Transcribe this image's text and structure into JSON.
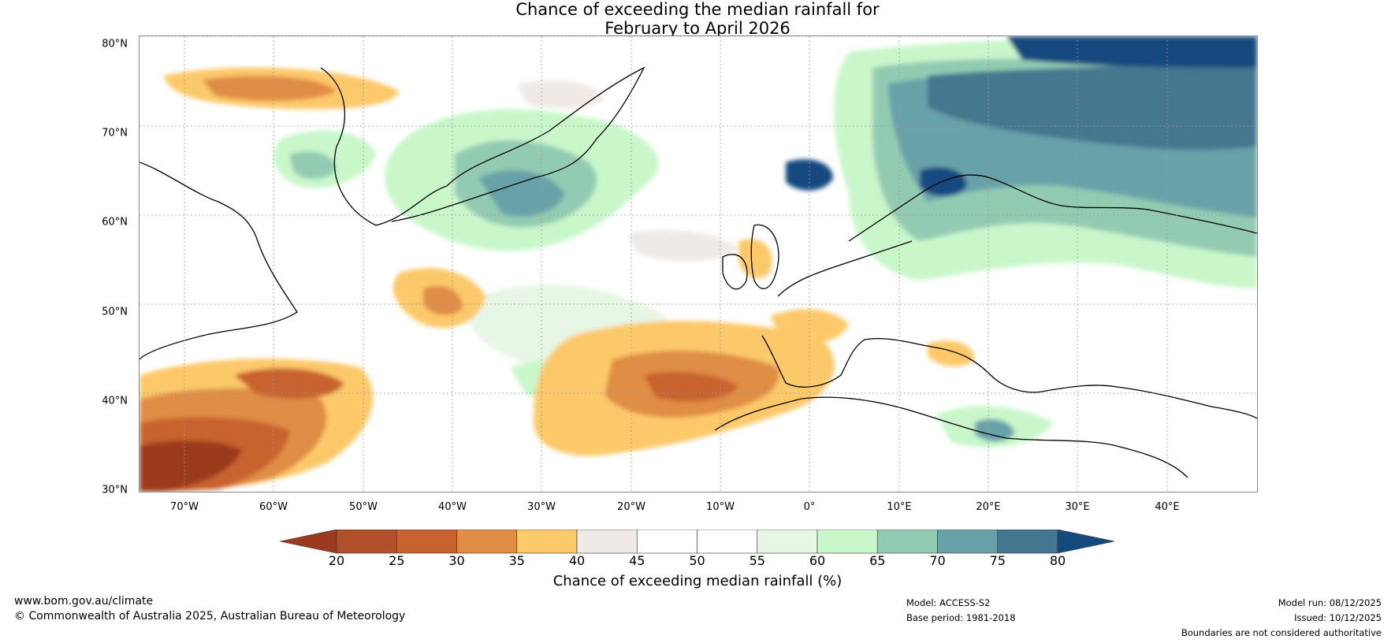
{
  "title": {
    "line1": "Chance of exceeding the median rainfall for",
    "line2": "February to April 2026"
  },
  "map": {
    "lat_labels": [
      "80°N",
      "70°N",
      "60°N",
      "50°N",
      "40°N",
      "30°N"
    ],
    "lon_labels": [
      "70°W",
      "60°W",
      "50°W",
      "40°W",
      "30°W",
      "20°W",
      "10°W",
      "0°",
      "10°E",
      "20°E",
      "30°E",
      "40°E"
    ],
    "extent": {
      "lon_min": -75,
      "lon_max": 50,
      "lat_min": 30,
      "lat_max": 81
    }
  },
  "colorbar": {
    "ticks": [
      "20",
      "25",
      "30",
      "35",
      "40",
      "45",
      "50",
      "55",
      "60",
      "65",
      "70",
      "75",
      "80"
    ],
    "colors": [
      "#9b3a1e",
      "#b24f2b",
      "#c8622f",
      "#e08d45",
      "#fcc96b",
      "#efeae6",
      "#ffffff",
      "#ffffff",
      "#e8f6e6",
      "#c9f7ca",
      "#93cbb2",
      "#69a1a9",
      "#44778f",
      "#154a7f"
    ],
    "label": "Chance of exceeding median rainfall (%)"
  },
  "footer": {
    "website": "www.bom.gov.au/climate",
    "copyright": "© Commonwealth of Australia 2025, Australian Bureau of Meteorology",
    "model": "Model: ACCESS-S2",
    "base_period": "Base period: 1981-2018",
    "model_run": "Model run: 08/12/2025",
    "issued": "Issued: 10/12/2025",
    "disclaimer": "Boundaries are not considered authoritative"
  }
}
